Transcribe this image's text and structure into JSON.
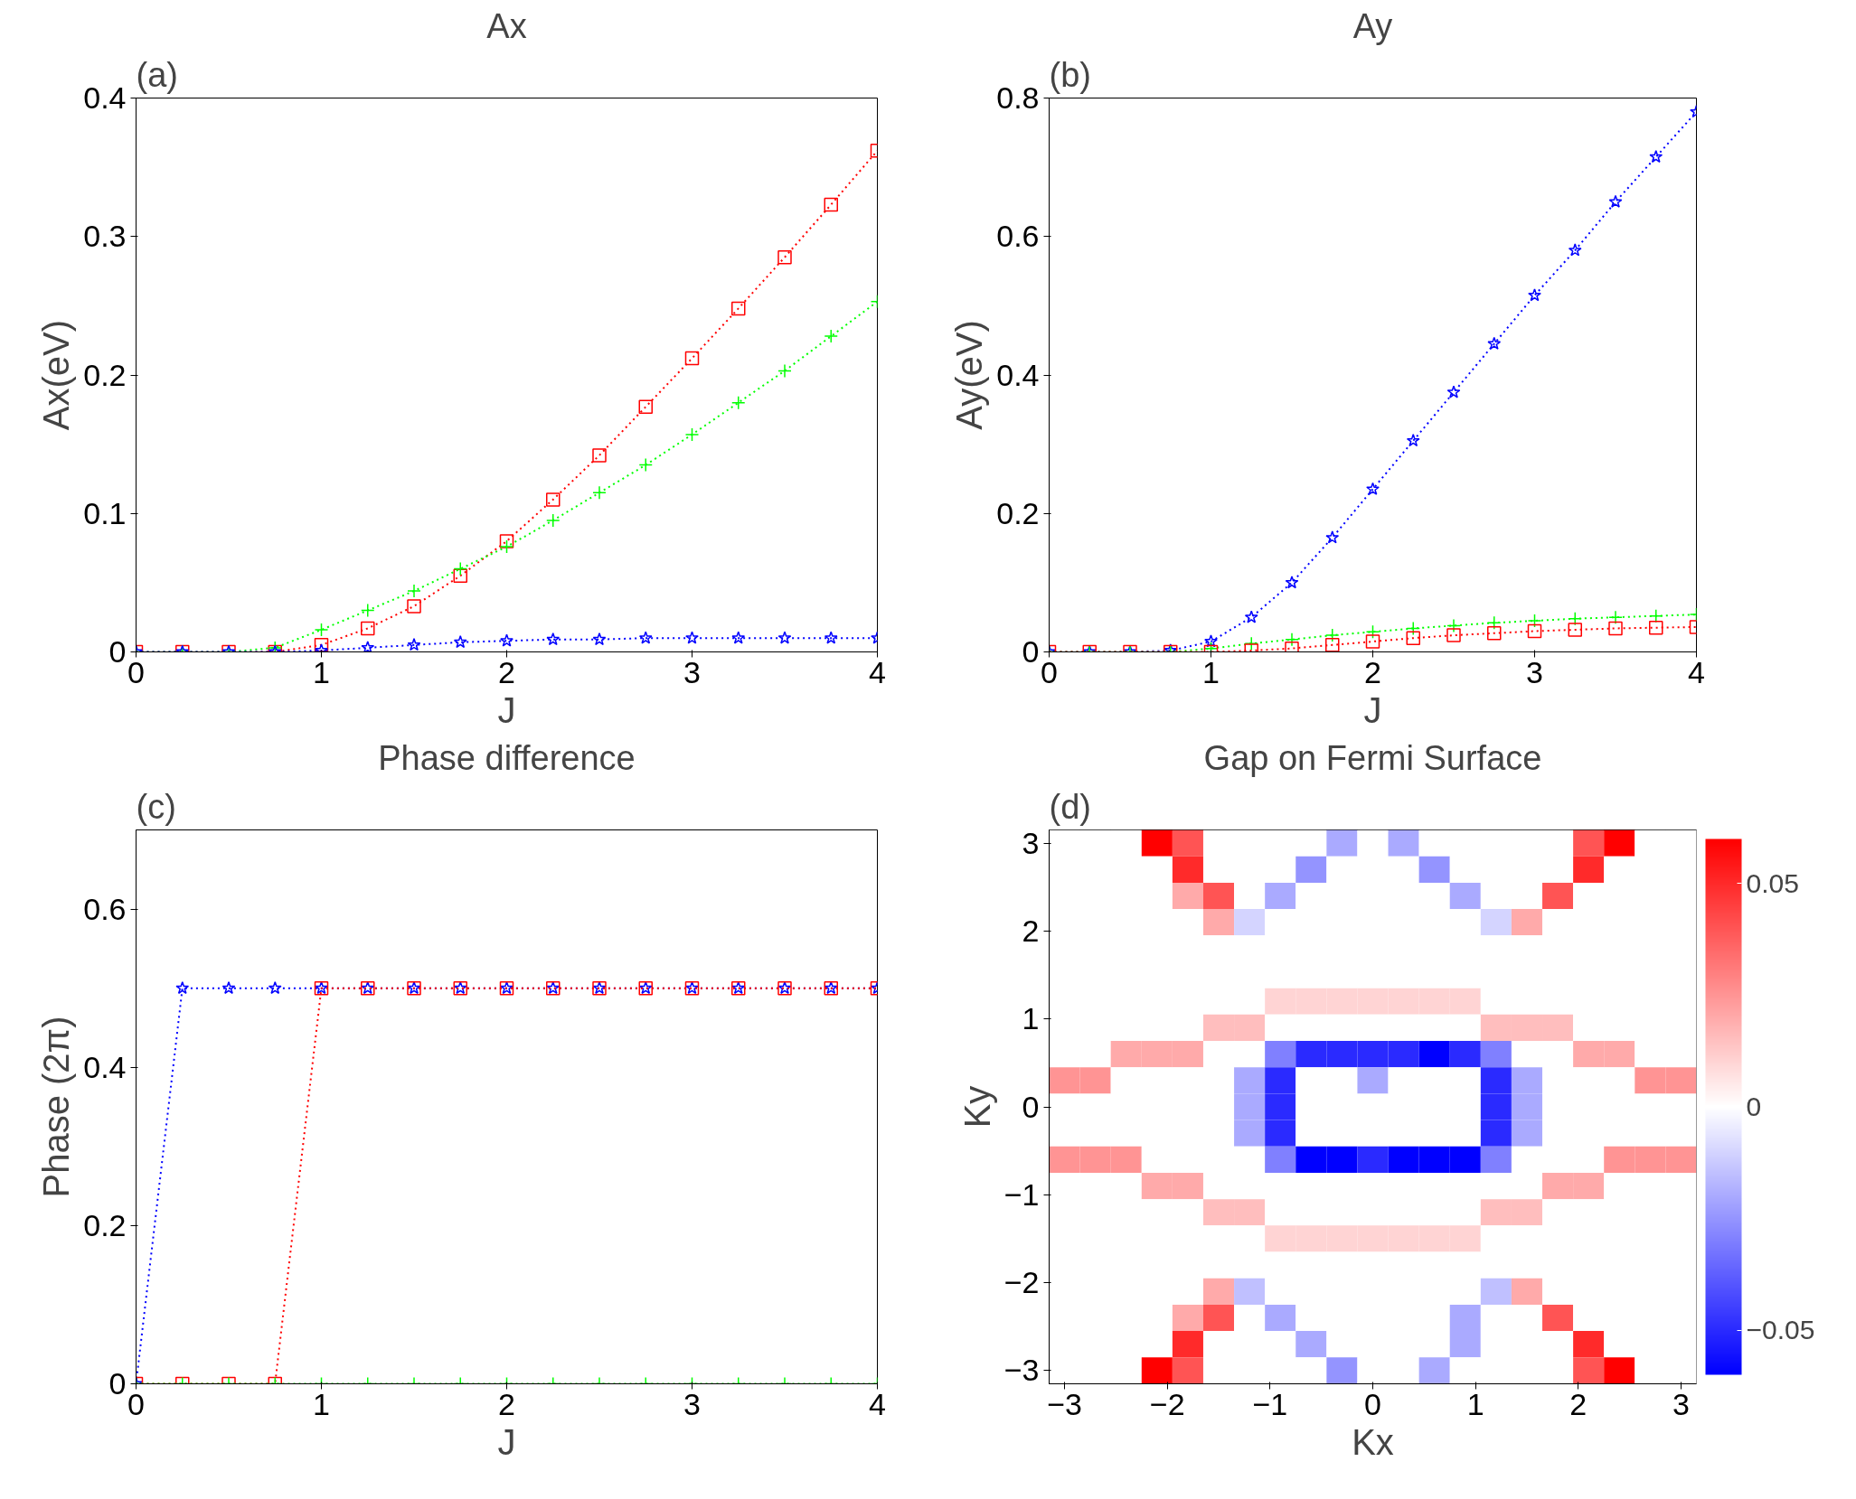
{
  "chart_data": [
    {
      "type": "line",
      "title": "Ax",
      "xlabel": "J",
      "ylabel": "Ax(eV)",
      "annotations": [
        "(a)"
      ],
      "x": [
        0,
        0.25,
        0.5,
        0.75,
        1,
        1.25,
        1.5,
        1.75,
        2,
        2.25,
        2.5,
        2.75,
        3,
        3.25,
        3.5,
        3.75,
        4
      ],
      "series": [
        {
          "color": "#ff0000",
          "marker": "square",
          "values": [
            0,
            0,
            0,
            0,
            0.005,
            0.017,
            0.033,
            0.055,
            0.08,
            0.11,
            0.142,
            0.177,
            0.212,
            0.248,
            0.285,
            0.323,
            0.362
          ]
        },
        {
          "color": "#00ff00",
          "marker": "cross",
          "values": [
            0,
            0,
            0,
            0.003,
            0.016,
            0.03,
            0.044,
            0.06,
            0.076,
            0.095,
            0.115,
            0.135,
            0.157,
            0.18,
            0.203,
            0.228,
            0.253
          ]
        },
        {
          "color": "#0000ff",
          "marker": "star",
          "values": [
            0,
            0,
            0,
            0,
            0.001,
            0.003,
            0.005,
            0.007,
            0.008,
            0.009,
            0.009,
            0.01,
            0.01,
            0.01,
            0.01,
            0.01,
            0.01
          ]
        }
      ],
      "xlim": [
        0,
        4
      ],
      "xticks": [
        0,
        1,
        2,
        3,
        4
      ],
      "ylim": [
        0,
        0.4
      ],
      "yticks": [
        0,
        0.1,
        0.2,
        0.3,
        0.4
      ],
      "line_style": "dotted",
      "grid": false
    },
    {
      "type": "line",
      "title": "Ay",
      "xlabel": "J",
      "ylabel": "Ay(eV)",
      "annotations": [
        "(b)"
      ],
      "x": [
        0,
        0.25,
        0.5,
        0.75,
        1,
        1.25,
        1.5,
        1.75,
        2,
        2.25,
        2.5,
        2.75,
        3,
        3.25,
        3.5,
        3.75,
        4
      ],
      "series": [
        {
          "color": "#0000ff",
          "marker": "star",
          "values": [
            0,
            0,
            0,
            0.002,
            0.015,
            0.05,
            0.1,
            0.165,
            0.235,
            0.305,
            0.375,
            0.445,
            0.515,
            0.58,
            0.65,
            0.715,
            0.78
          ]
        },
        {
          "color": "#00ff00",
          "marker": "cross",
          "values": [
            0,
            0,
            0,
            0,
            0.005,
            0.012,
            0.018,
            0.024,
            0.029,
            0.034,
            0.038,
            0.042,
            0.045,
            0.048,
            0.05,
            0.052,
            0.054
          ]
        },
        {
          "color": "#ff0000",
          "marker": "square",
          "values": [
            0,
            0,
            0,
            0,
            0,
            0.002,
            0.005,
            0.01,
            0.015,
            0.02,
            0.024,
            0.027,
            0.03,
            0.032,
            0.034,
            0.035,
            0.036
          ]
        }
      ],
      "xlim": [
        0,
        4
      ],
      "xticks": [
        0,
        1,
        2,
        3,
        4
      ],
      "ylim": [
        0,
        0.8
      ],
      "yticks": [
        0,
        0.2,
        0.4,
        0.6,
        0.8
      ],
      "line_style": "dotted",
      "grid": false
    },
    {
      "type": "line",
      "title": "Phase difference",
      "xlabel": "J",
      "ylabel": "Phase (2π)",
      "annotations": [
        "(c)"
      ],
      "x": [
        0,
        0.25,
        0.5,
        0.75,
        1,
        1.25,
        1.5,
        1.75,
        2,
        2.25,
        2.5,
        2.75,
        3,
        3.25,
        3.5,
        3.75,
        4
      ],
      "series": [
        {
          "color": "#0000ff",
          "marker": "star",
          "values": [
            0,
            0.5,
            0.5,
            0.5,
            0.5,
            0.5,
            0.5,
            0.5,
            0.5,
            0.5,
            0.5,
            0.5,
            0.5,
            0.5,
            0.5,
            0.5,
            0.5
          ]
        },
        {
          "color": "#ff0000",
          "marker": "square",
          "values": [
            0,
            0,
            0,
            0,
            0.5,
            0.5,
            0.5,
            0.5,
            0.5,
            0.5,
            0.5,
            0.5,
            0.5,
            0.5,
            0.5,
            0.5,
            0.5
          ]
        },
        {
          "color": "#00ff00",
          "marker": "cross",
          "values": [
            0,
            0,
            0,
            0,
            0,
            0,
            0,
            0,
            0,
            0,
            0,
            0,
            0,
            0,
            0,
            0,
            0
          ]
        }
      ],
      "xlim": [
        0,
        4
      ],
      "xticks": [
        0,
        1,
        2,
        3,
        4
      ],
      "ylim": [
        0,
        0.7
      ],
      "yticks": [
        0,
        0.2,
        0.4,
        0.6
      ],
      "line_style": "dotted",
      "grid": false
    },
    {
      "type": "heatmap",
      "title": "Gap on Fermi Surface",
      "xlabel": "Kx",
      "ylabel": "Ky",
      "annotations": [
        "(d)"
      ],
      "x": [
        -3.0,
        -2.7,
        -2.4,
        -2.1,
        -1.8,
        -1.5,
        -1.2,
        -0.9,
        -0.6,
        -0.3,
        0,
        0.3,
        0.6,
        0.9,
        1.2,
        1.5,
        1.8,
        2.1,
        2.4,
        2.7,
        3.0
      ],
      "y": [
        3.0,
        2.7,
        2.4,
        2.1,
        1.8,
        1.5,
        1.2,
        0.9,
        0.6,
        0.3,
        0,
        -0.3,
        -0.6,
        -0.9,
        -1.2,
        -1.5,
        -1.8,
        -2.1,
        -2.4,
        -2.7,
        -3.0
      ],
      "cells": [
        [
          0,
          0,
          0,
          0.06,
          0.04,
          0,
          0,
          0,
          0,
          -0.02,
          0,
          -0.02,
          0,
          0,
          0,
          0,
          0,
          0.04,
          0.06,
          0,
          0
        ],
        [
          0,
          0,
          0,
          0,
          0.05,
          0,
          0,
          0,
          -0.025,
          0,
          0,
          0,
          -0.025,
          0,
          0,
          0,
          0,
          0.05,
          0,
          0,
          0
        ],
        [
          0,
          0,
          0,
          0,
          0.02,
          0.04,
          0,
          -0.02,
          0,
          0,
          0,
          0,
          0,
          -0.02,
          0,
          0,
          0.04,
          0,
          0,
          0,
          0
        ],
        [
          0,
          0,
          0,
          0,
          0,
          0.02,
          -0.01,
          0,
          0,
          0,
          0,
          0,
          0,
          0,
          -0.01,
          0.02,
          0,
          0,
          0,
          0,
          0
        ],
        [
          0,
          0,
          0,
          0,
          0,
          0,
          0,
          0,
          0,
          0,
          0,
          0,
          0,
          0,
          0,
          0,
          0,
          0,
          0,
          0,
          0
        ],
        [
          0,
          0,
          0,
          0,
          0,
          0,
          0,
          0,
          0,
          0,
          0,
          0,
          0,
          0,
          0,
          0,
          0,
          0,
          0,
          0,
          0
        ],
        [
          0,
          0,
          0,
          0,
          0,
          0,
          0,
          0.01,
          0.01,
          0.01,
          0.01,
          0.01,
          0.01,
          0.01,
          0,
          0,
          0,
          0,
          0,
          0,
          0
        ],
        [
          0,
          0,
          0,
          0,
          0,
          0.015,
          0.015,
          0,
          0,
          0,
          0,
          0,
          0,
          0,
          0.015,
          0.015,
          0.015,
          0,
          0,
          0,
          0
        ],
        [
          0,
          0,
          0.02,
          0.02,
          0.02,
          0,
          0,
          -0.03,
          -0.05,
          -0.05,
          -0.05,
          -0.05,
          -0.06,
          -0.05,
          -0.03,
          0,
          0,
          0.02,
          0.02,
          0,
          0
        ],
        [
          0.025,
          0.025,
          0,
          0,
          0,
          0,
          -0.02,
          -0.05,
          0,
          0,
          -0.02,
          0,
          0,
          0,
          -0.05,
          -0.02,
          0,
          0,
          0,
          0.025,
          0.025
        ],
        [
          0,
          0,
          0,
          0,
          0,
          0,
          -0.02,
          -0.05,
          0,
          0,
          0,
          0,
          0,
          0,
          -0.05,
          -0.02,
          0,
          0,
          0,
          0,
          0
        ],
        [
          0,
          0,
          0,
          0,
          0,
          0,
          -0.02,
          -0.05,
          0,
          0,
          0,
          0,
          0,
          0,
          -0.05,
          -0.02,
          0,
          0,
          0,
          0,
          0
        ],
        [
          0.025,
          0.025,
          0.025,
          0,
          0,
          0,
          0,
          -0.03,
          -0.06,
          -0.06,
          -0.05,
          -0.06,
          -0.06,
          -0.06,
          -0.03,
          0,
          0,
          0,
          0.025,
          0.025,
          0.025
        ],
        [
          0,
          0,
          0,
          0.02,
          0.02,
          0,
          0,
          0,
          0,
          0,
          0,
          0,
          0,
          0,
          0,
          0,
          0.02,
          0.02,
          0,
          0,
          0
        ],
        [
          0,
          0,
          0,
          0,
          0,
          0.015,
          0.015,
          0,
          0,
          0,
          0,
          0,
          0,
          0,
          0.015,
          0.015,
          0,
          0,
          0,
          0,
          0
        ],
        [
          0,
          0,
          0,
          0,
          0,
          0,
          0,
          0.01,
          0.01,
          0.01,
          0.01,
          0.01,
          0.01,
          0.01,
          0,
          0,
          0,
          0,
          0,
          0,
          0
        ],
        [
          0,
          0,
          0,
          0,
          0,
          0,
          0,
          0,
          0,
          0,
          0,
          0,
          0,
          0,
          0,
          0,
          0,
          0,
          0,
          0,
          0
        ],
        [
          0,
          0,
          0,
          0,
          0,
          0.02,
          -0.015,
          0,
          0,
          0,
          0,
          0,
          0,
          0,
          -0.015,
          0.02,
          0,
          0,
          0,
          0,
          0
        ],
        [
          0,
          0,
          0,
          0,
          0.02,
          0.04,
          0,
          -0.02,
          0,
          0,
          0,
          0,
          0,
          -0.02,
          0,
          0,
          0.04,
          0,
          0,
          0,
          0
        ],
        [
          0,
          0,
          0,
          0,
          0.05,
          0,
          0,
          0,
          -0.02,
          0,
          0,
          0,
          0,
          -0.02,
          0,
          0,
          0,
          0.05,
          0,
          0,
          0
        ],
        [
          0,
          0,
          0,
          0.06,
          0.04,
          0,
          0,
          0,
          0,
          -0.025,
          0,
          0,
          -0.02,
          0,
          0,
          0,
          0,
          0.04,
          0.06,
          0,
          0
        ]
      ],
      "xlim": [
        -3.15,
        3.15
      ],
      "ylim": [
        -3.15,
        3.15
      ],
      "xticks": [
        {
          "value": -3,
          "label": "−3"
        },
        {
          "value": -2,
          "label": "−2"
        },
        {
          "value": -1,
          "label": "−1"
        },
        0,
        1,
        2,
        3
      ],
      "yticks": [
        {
          "value": -3,
          "label": "−3"
        },
        {
          "value": -2,
          "label": "−2"
        },
        {
          "value": -1,
          "label": "−1"
        },
        0,
        1,
        2,
        3
      ],
      "clim": [
        -0.06,
        0.06
      ],
      "cticks": [
        {
          "value": -0.05,
          "label": "−0.05"
        },
        0,
        0.05
      ],
      "grid": false
    }
  ]
}
